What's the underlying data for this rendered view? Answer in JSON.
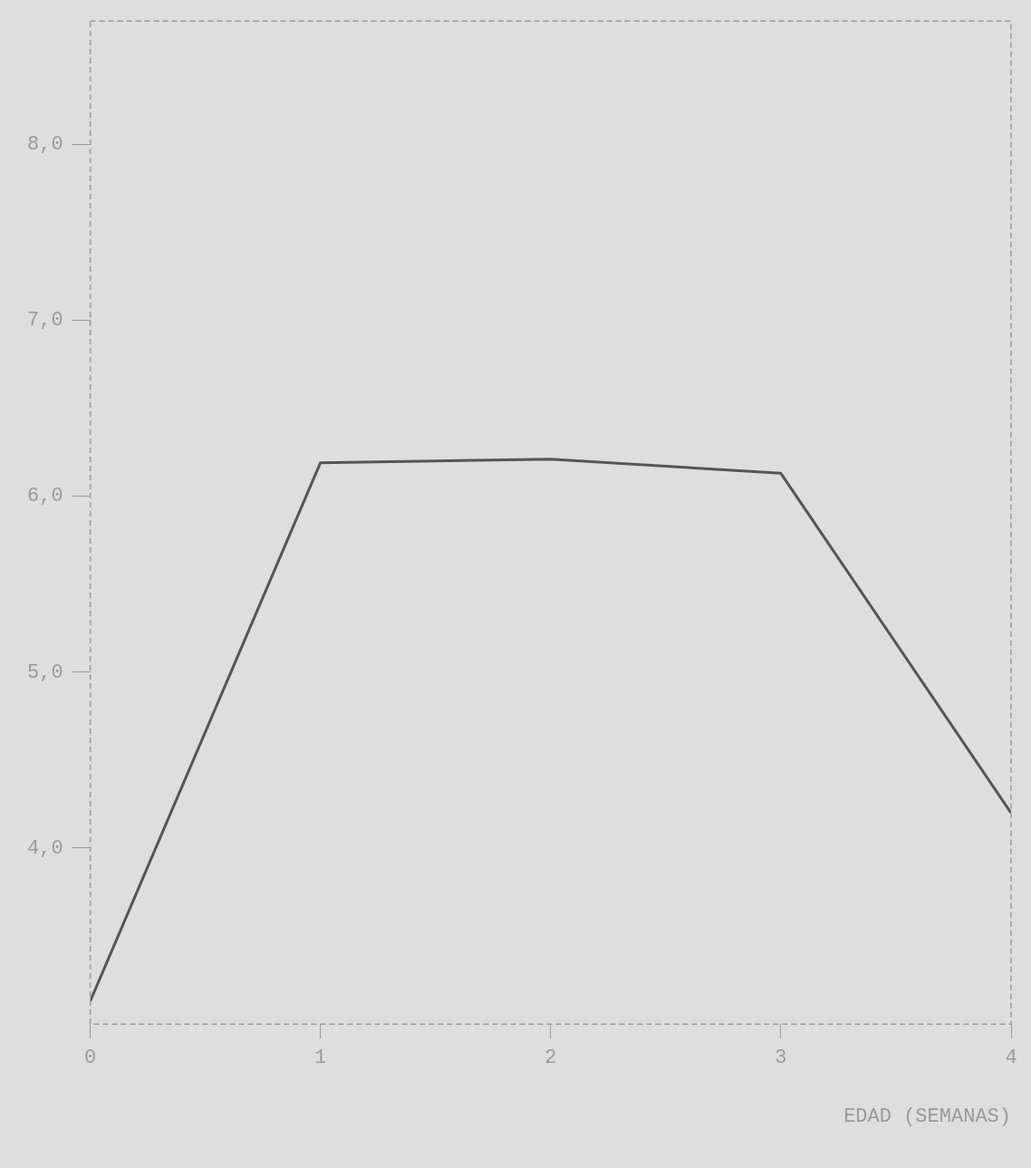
{
  "chart_data": {
    "type": "line",
    "xlabel": "EDAD (SEMANAS)",
    "x": [
      0,
      1,
      2,
      3,
      4
    ],
    "series": [
      {
        "color": "#555555",
        "values": [
          3.13,
          6.19,
          6.21,
          6.13,
          4.2
        ]
      }
    ],
    "xlim": [
      0,
      4
    ],
    "xticks": [
      0,
      1,
      2,
      3,
      4
    ],
    "ylim": [
      3.0,
      8.7
    ],
    "yticks": [
      {
        "value": 4,
        "label": "4,0"
      },
      {
        "value": 5,
        "label": "5,0"
      },
      {
        "value": 6,
        "label": "6,0"
      },
      {
        "value": 7,
        "label": "7,0"
      },
      {
        "value": 8,
        "label": "8,0"
      }
    ],
    "marker": "none",
    "line_style": "solid",
    "legend": false,
    "grid": false
  }
}
